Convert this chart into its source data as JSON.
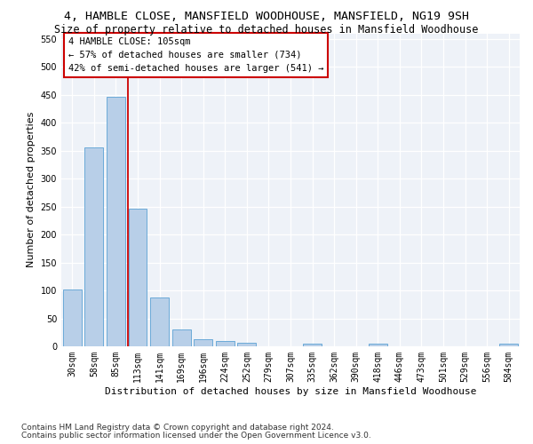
{
  "title": "4, HAMBLE CLOSE, MANSFIELD WOODHOUSE, MANSFIELD, NG19 9SH",
  "subtitle": "Size of property relative to detached houses in Mansfield Woodhouse",
  "xlabel": "Distribution of detached houses by size in Mansfield Woodhouse",
  "ylabel": "Number of detached properties",
  "footnote1": "Contains HM Land Registry data © Crown copyright and database right 2024.",
  "footnote2": "Contains public sector information licensed under the Open Government Licence v3.0.",
  "bar_labels": [
    "30sqm",
    "58sqm",
    "85sqm",
    "113sqm",
    "141sqm",
    "169sqm",
    "196sqm",
    "224sqm",
    "252sqm",
    "279sqm",
    "307sqm",
    "335sqm",
    "362sqm",
    "390sqm",
    "418sqm",
    "446sqm",
    "473sqm",
    "501sqm",
    "529sqm",
    "556sqm",
    "584sqm"
  ],
  "bar_values": [
    102,
    356,
    447,
    246,
    88,
    30,
    13,
    9,
    6,
    0,
    0,
    5,
    0,
    0,
    5,
    0,
    0,
    0,
    0,
    0,
    5
  ],
  "bar_color": "#b8cfe8",
  "bar_edge_color": "#6baad8",
  "vline_x": 2.57,
  "vline_color": "#cc0000",
  "annotation_line1": "4 HAMBLE CLOSE: 105sqm",
  "annotation_line2": "← 57% of detached houses are smaller (734)",
  "annotation_line3": "42% of semi-detached houses are larger (541) →",
  "ylim": [
    0,
    560
  ],
  "yticks": [
    0,
    50,
    100,
    150,
    200,
    250,
    300,
    350,
    400,
    450,
    500,
    550
  ],
  "bg_color": "#eef2f8",
  "grid_color": "#ffffff",
  "fig_bg_color": "#ffffff",
  "title_fontsize": 9.5,
  "subtitle_fontsize": 8.5,
  "axis_label_fontsize": 8,
  "tick_fontsize": 7,
  "footnote_fontsize": 6.5,
  "annot_fontsize": 7.5
}
